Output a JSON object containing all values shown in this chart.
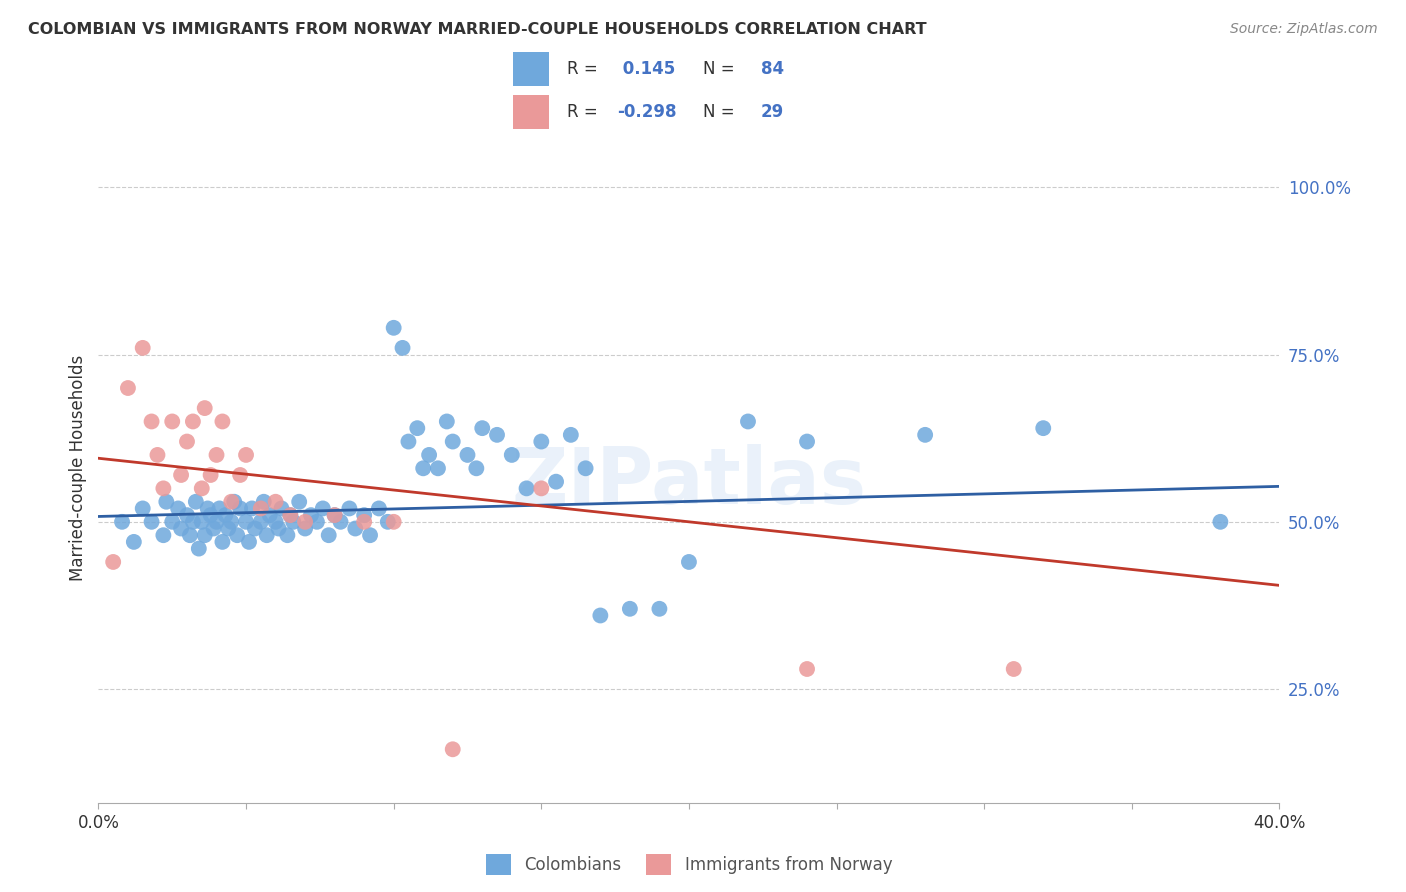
{
  "title": "COLOMBIAN VS IMMIGRANTS FROM NORWAY MARRIED-COUPLE HOUSEHOLDS CORRELATION CHART",
  "source": "Source: ZipAtlas.com",
  "ylabel": "Married-couple Households",
  "ytick_labels": [
    "25.0%",
    "50.0%",
    "75.0%",
    "100.0%"
  ],
  "ytick_values": [
    0.25,
    0.5,
    0.75,
    1.0
  ],
  "xmin": 0.0,
  "xmax": 0.4,
  "ymin": 0.08,
  "ymax": 1.08,
  "blue_R": 0.145,
  "blue_N": 84,
  "pink_R": -0.298,
  "pink_N": 29,
  "blue_color": "#6fa8dc",
  "pink_color": "#ea9999",
  "blue_line_color": "#2e5fa3",
  "pink_line_color": "#c0392b",
  "watermark": "ZIPatlas",
  "legend_colombians": "Colombians",
  "legend_norway": "Immigrants from Norway",
  "blue_scatter_x": [
    0.008,
    0.012,
    0.015,
    0.018,
    0.022,
    0.023,
    0.025,
    0.027,
    0.028,
    0.03,
    0.031,
    0.032,
    0.033,
    0.034,
    0.035,
    0.036,
    0.037,
    0.038,
    0.039,
    0.04,
    0.041,
    0.042,
    0.043,
    0.044,
    0.045,
    0.046,
    0.047,
    0.048,
    0.05,
    0.051,
    0.052,
    0.053,
    0.055,
    0.056,
    0.057,
    0.058,
    0.06,
    0.061,
    0.062,
    0.064,
    0.065,
    0.066,
    0.068,
    0.07,
    0.072,
    0.074,
    0.076,
    0.078,
    0.08,
    0.082,
    0.085,
    0.087,
    0.09,
    0.092,
    0.095,
    0.098,
    0.1,
    0.103,
    0.105,
    0.108,
    0.11,
    0.112,
    0.115,
    0.118,
    0.12,
    0.125,
    0.128,
    0.13,
    0.135,
    0.14,
    0.145,
    0.15,
    0.155,
    0.16,
    0.165,
    0.17,
    0.18,
    0.19,
    0.2,
    0.22,
    0.24,
    0.28,
    0.32,
    0.38
  ],
  "blue_scatter_y": [
    0.5,
    0.47,
    0.52,
    0.5,
    0.48,
    0.53,
    0.5,
    0.52,
    0.49,
    0.51,
    0.48,
    0.5,
    0.53,
    0.46,
    0.5,
    0.48,
    0.52,
    0.51,
    0.49,
    0.5,
    0.52,
    0.47,
    0.51,
    0.49,
    0.5,
    0.53,
    0.48,
    0.52,
    0.5,
    0.47,
    0.52,
    0.49,
    0.5,
    0.53,
    0.48,
    0.51,
    0.5,
    0.49,
    0.52,
    0.48,
    0.51,
    0.5,
    0.53,
    0.49,
    0.51,
    0.5,
    0.52,
    0.48,
    0.51,
    0.5,
    0.52,
    0.49,
    0.51,
    0.48,
    0.52,
    0.5,
    0.79,
    0.76,
    0.62,
    0.64,
    0.58,
    0.6,
    0.58,
    0.65,
    0.62,
    0.6,
    0.58,
    0.64,
    0.63,
    0.6,
    0.55,
    0.62,
    0.56,
    0.63,
    0.58,
    0.36,
    0.37,
    0.37,
    0.44,
    0.65,
    0.62,
    0.63,
    0.64,
    0.5
  ],
  "pink_scatter_x": [
    0.005,
    0.01,
    0.015,
    0.018,
    0.02,
    0.022,
    0.025,
    0.028,
    0.03,
    0.032,
    0.035,
    0.036,
    0.038,
    0.04,
    0.042,
    0.045,
    0.048,
    0.05,
    0.055,
    0.06,
    0.065,
    0.07,
    0.08,
    0.09,
    0.1,
    0.12,
    0.15,
    0.24,
    0.31
  ],
  "pink_scatter_y": [
    0.44,
    0.7,
    0.76,
    0.65,
    0.6,
    0.55,
    0.65,
    0.57,
    0.62,
    0.65,
    0.55,
    0.67,
    0.57,
    0.6,
    0.65,
    0.53,
    0.57,
    0.6,
    0.52,
    0.53,
    0.51,
    0.5,
    0.51,
    0.5,
    0.5,
    0.16,
    0.55,
    0.28,
    0.28
  ],
  "blue_line_x": [
    0.0,
    0.4
  ],
  "blue_line_y": [
    0.508,
    0.553
  ],
  "pink_line_x": [
    0.0,
    0.4
  ],
  "pink_line_y": [
    0.595,
    0.405
  ]
}
